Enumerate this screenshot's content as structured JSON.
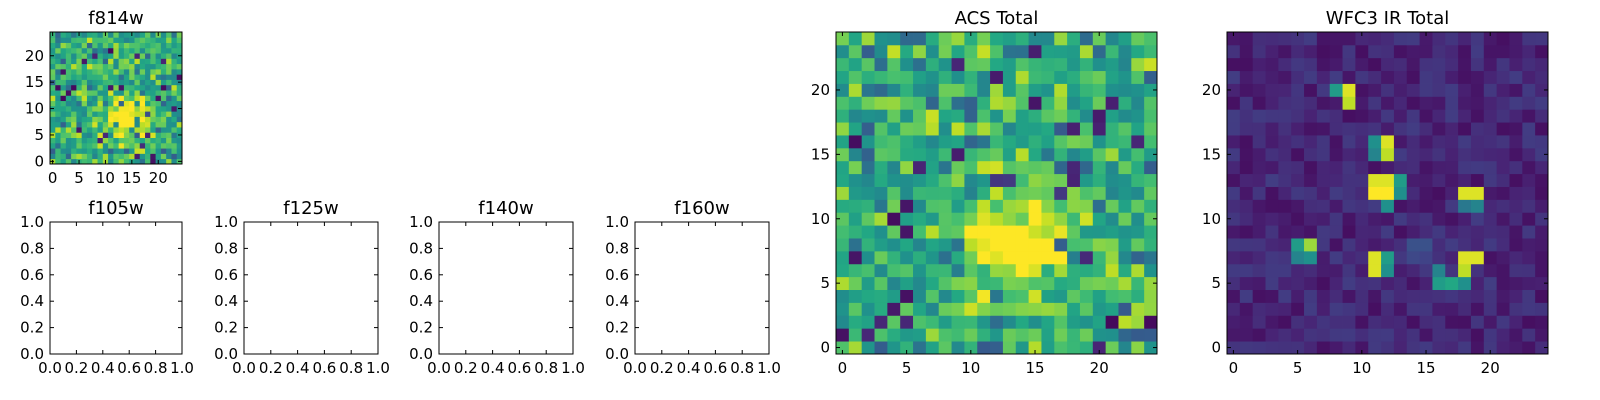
{
  "chart_data": [
    {
      "type": "heatmap",
      "title": "f814w",
      "x_ticks": [
        "0",
        "5",
        "10",
        "15",
        "20"
      ],
      "y_ticks": [
        "0",
        "5",
        "10",
        "15",
        "20"
      ],
      "xlim": [
        -0.5,
        24.5
      ],
      "ylim": [
        -0.5,
        24.5
      ],
      "grid_size": 25,
      "colormap": "viridis",
      "bright_source": {
        "x": 14,
        "y": 8,
        "radius": 2.5
      }
    },
    {
      "type": "empty",
      "title": "f105w",
      "x_ticks": [
        "0.0",
        "0.2",
        "0.4",
        "0.6",
        "0.8",
        "1.0"
      ],
      "y_ticks": [
        "0.0",
        "0.2",
        "0.4",
        "0.6",
        "0.8",
        "1.0"
      ],
      "xlim": [
        0,
        1
      ],
      "ylim": [
        0,
        1
      ]
    },
    {
      "type": "empty",
      "title": "f125w",
      "x_ticks": [
        "0.0",
        "0.2",
        "0.4",
        "0.6",
        "0.8",
        "1.0"
      ],
      "y_ticks": [
        "0.0",
        "0.2",
        "0.4",
        "0.6",
        "0.8",
        "1.0"
      ],
      "xlim": [
        0,
        1
      ],
      "ylim": [
        0,
        1
      ]
    },
    {
      "type": "empty",
      "title": "f140w",
      "x_ticks": [
        "0.0",
        "0.2",
        "0.4",
        "0.6",
        "0.8",
        "1.0"
      ],
      "y_ticks": [
        "0.0",
        "0.2",
        "0.4",
        "0.6",
        "0.8",
        "1.0"
      ],
      "xlim": [
        0,
        1
      ],
      "ylim": [
        0,
        1
      ]
    },
    {
      "type": "empty",
      "title": "f160w",
      "x_ticks": [
        "0.0",
        "0.2",
        "0.4",
        "0.6",
        "0.8",
        "1.0"
      ],
      "y_ticks": [
        "0.0",
        "0.2",
        "0.4",
        "0.6",
        "0.8",
        "1.0"
      ],
      "xlim": [
        0,
        1
      ],
      "ylim": [
        0,
        1
      ]
    },
    {
      "type": "heatmap",
      "title": "ACS Total",
      "x_ticks": [
        "0",
        "5",
        "10",
        "15",
        "20"
      ],
      "y_ticks": [
        "0",
        "5",
        "10",
        "15",
        "20"
      ],
      "xlim": [
        -0.5,
        24.5
      ],
      "ylim": [
        -0.5,
        24.5
      ],
      "grid_size": 25,
      "colormap": "viridis",
      "bright_source": {
        "x": 14,
        "y": 8,
        "radius": 2.5
      }
    },
    {
      "type": "heatmap",
      "title": "WFC3 IR Total",
      "x_ticks": [
        "0",
        "5",
        "10",
        "15",
        "20"
      ],
      "y_ticks": [
        "0",
        "5",
        "10",
        "15",
        "20"
      ],
      "xlim": [
        -0.5,
        24.5
      ],
      "ylim": [
        -0.5,
        24.5
      ],
      "grid_size": 25,
      "colormap": "viridis",
      "hot_pixels": [
        {
          "x": 9,
          "y": 20,
          "v": 0.95
        },
        {
          "x": 9,
          "y": 19,
          "v": 0.9
        },
        {
          "x": 8,
          "y": 20,
          "v": 0.55
        },
        {
          "x": 12,
          "y": 16,
          "v": 0.95
        },
        {
          "x": 12,
          "y": 15,
          "v": 0.9
        },
        {
          "x": 11,
          "y": 16,
          "v": 0.5
        },
        {
          "x": 11,
          "y": 15,
          "v": 0.45
        },
        {
          "x": 11,
          "y": 12,
          "v": 1.0
        },
        {
          "x": 12,
          "y": 12,
          "v": 1.0
        },
        {
          "x": 11,
          "y": 13,
          "v": 0.95
        },
        {
          "x": 12,
          "y": 13,
          "v": 0.95
        },
        {
          "x": 13,
          "y": 13,
          "v": 0.55
        },
        {
          "x": 13,
          "y": 12,
          "v": 0.5
        },
        {
          "x": 12,
          "y": 11,
          "v": 0.5
        },
        {
          "x": 19,
          "y": 12,
          "v": 0.95
        },
        {
          "x": 18,
          "y": 12,
          "v": 0.95
        },
        {
          "x": 19,
          "y": 11,
          "v": 0.45
        },
        {
          "x": 18,
          "y": 11,
          "v": 0.4
        },
        {
          "x": 5,
          "y": 8,
          "v": 0.55
        },
        {
          "x": 6,
          "y": 8,
          "v": 0.85
        },
        {
          "x": 5,
          "y": 7,
          "v": 0.45
        },
        {
          "x": 6,
          "y": 7,
          "v": 0.5
        },
        {
          "x": 11,
          "y": 7,
          "v": 0.95
        },
        {
          "x": 11,
          "y": 6,
          "v": 0.95
        },
        {
          "x": 12,
          "y": 7,
          "v": 0.55
        },
        {
          "x": 12,
          "y": 6,
          "v": 0.5
        },
        {
          "x": 18,
          "y": 7,
          "v": 0.95
        },
        {
          "x": 19,
          "y": 7,
          "v": 0.95
        },
        {
          "x": 18,
          "y": 6,
          "v": 0.9
        },
        {
          "x": 16,
          "y": 6,
          "v": 0.45
        },
        {
          "x": 16,
          "y": 5,
          "v": 0.55
        },
        {
          "x": 17,
          "y": 5,
          "v": 0.6
        },
        {
          "x": 18,
          "y": 5,
          "v": 0.5
        },
        {
          "x": 14,
          "y": 8,
          "v": 0.25
        },
        {
          "x": 15,
          "y": 8,
          "v": 0.25
        },
        {
          "x": 14,
          "y": 7,
          "v": 0.22
        },
        {
          "x": 15,
          "y": 7,
          "v": 0.2
        }
      ]
    }
  ]
}
